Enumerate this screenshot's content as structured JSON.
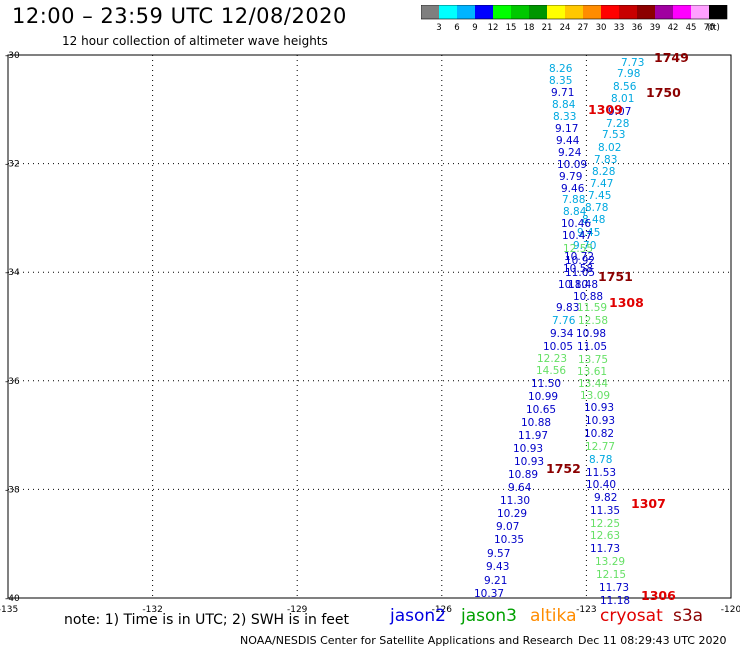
{
  "title": "12:00 – 23:59 UTC 12/08/2020",
  "subtitle": "12 hour collection of altimeter wave heights",
  "color_scale": {
    "unit": "(ft)",
    "ticks": [
      "3",
      "6",
      "9",
      "12",
      "15",
      "18",
      "21",
      "24",
      "27",
      "30",
      "33",
      "36",
      "39",
      "42",
      "45",
      "70"
    ],
    "colors": [
      "#7f7f7f",
      "#00ffff",
      "#00b4ff",
      "#0000ff",
      "#00ff00",
      "#00c800",
      "#009600",
      "#ffff00",
      "#ffc800",
      "#ff8c00",
      "#ff0000",
      "#c80000",
      "#8c0000",
      "#a000a0",
      "#ff00ff",
      "#ffa0ff",
      "#000000"
    ]
  },
  "axes": {
    "lon_ticks": [
      "-135",
      "-132",
      "-129",
      "-126",
      "-123",
      "-120"
    ],
    "lat_ticks": [
      "-30",
      "-32",
      "-34",
      "-36",
      "-38",
      "-40"
    ]
  },
  "points": [
    {
      "v": "7.73",
      "c": "#00a8e0"
    },
    {
      "v": "8.26",
      "c": "#00a8e0"
    },
    {
      "v": "7.98",
      "c": "#00a8e0"
    },
    {
      "v": "8.35",
      "c": "#00a8e0"
    },
    {
      "v": "8.56",
      "c": "#00a8e0"
    },
    {
      "v": "9.71",
      "c": "#0000c8"
    },
    {
      "v": "8.01",
      "c": "#00a8e0"
    },
    {
      "v": "8.84",
      "c": "#00a8e0"
    },
    {
      "v": "9.07",
      "c": "#0000c8"
    },
    {
      "v": "8.33",
      "c": "#00a8e0"
    },
    {
      "v": "7.28",
      "c": "#00a8e0"
    },
    {
      "v": "9.17",
      "c": "#0000c8"
    },
    {
      "v": "7.53",
      "c": "#00a8e0"
    },
    {
      "v": "9.44",
      "c": "#0000c8"
    },
    {
      "v": "8.02",
      "c": "#00a8e0"
    },
    {
      "v": "9.24",
      "c": "#0000c8"
    },
    {
      "v": "7.83",
      "c": "#00a8e0"
    },
    {
      "v": "10.09",
      "c": "#0000c8"
    },
    {
      "v": "8.28",
      "c": "#00a8e0"
    },
    {
      "v": "9.79",
      "c": "#0000c8"
    },
    {
      "v": "7.47",
      "c": "#00a8e0"
    },
    {
      "v": "9.46",
      "c": "#0000c8"
    },
    {
      "v": "7.45",
      "c": "#00a8e0"
    },
    {
      "v": "7.88",
      "c": "#00a8e0"
    },
    {
      "v": "8.78",
      "c": "#00a8e0"
    },
    {
      "v": "8.84",
      "c": "#00a8e0"
    },
    {
      "v": "8.48",
      "c": "#00a8e0"
    },
    {
      "v": "10.46",
      "c": "#0000c8"
    },
    {
      "v": "9.45",
      "c": "#00a8e0"
    },
    {
      "v": "10.47",
      "c": "#0000c8"
    },
    {
      "v": "9.70",
      "c": "#00a8e0"
    },
    {
      "v": "12.55",
      "c": "#66e066"
    },
    {
      "v": "10.72",
      "c": "#0000c8"
    },
    {
      "v": "10.92",
      "c": "#0000c8"
    },
    {
      "v": "10.58",
      "c": "#0000c8"
    },
    {
      "v": "11.05",
      "c": "#0000c8"
    },
    {
      "v": "11.48",
      "c": "#0000c8"
    },
    {
      "v": "10.80",
      "c": "#0000c8"
    },
    {
      "v": "10.88",
      "c": "#0000c8"
    },
    {
      "v": "9.83",
      "c": "#0000c8"
    },
    {
      "v": "11.59",
      "c": "#66e066"
    },
    {
      "v": "7.76",
      "c": "#00a8e0"
    },
    {
      "v": "12.58",
      "c": "#66e066"
    },
    {
      "v": "9.34",
      "c": "#0000c8"
    },
    {
      "v": "10.98",
      "c": "#0000c8"
    },
    {
      "v": "10.05",
      "c": "#0000c8"
    },
    {
      "v": "11.05",
      "c": "#0000c8"
    },
    {
      "v": "12.23",
      "c": "#66e066"
    },
    {
      "v": "13.75",
      "c": "#66e066"
    },
    {
      "v": "14.56",
      "c": "#66e066"
    },
    {
      "v": "13.61",
      "c": "#66e066"
    },
    {
      "v": "11.50",
      "c": "#0000c8"
    },
    {
      "v": "13.44",
      "c": "#66e066"
    },
    {
      "v": "10.99",
      "c": "#0000c8"
    },
    {
      "v": "13.09",
      "c": "#66e066"
    },
    {
      "v": "10.65",
      "c": "#0000c8"
    },
    {
      "v": "10.93",
      "c": "#0000c8"
    },
    {
      "v": "10.88",
      "c": "#0000c8"
    },
    {
      "v": "10.93",
      "c": "#0000c8"
    },
    {
      "v": "11.97",
      "c": "#0000c8"
    },
    {
      "v": "10.82",
      "c": "#0000c8"
    },
    {
      "v": "10.93",
      "c": "#0000c8"
    },
    {
      "v": "12.77",
      "c": "#66e066"
    },
    {
      "v": "10.93",
      "c": "#0000c8"
    },
    {
      "v": "8.78",
      "c": "#00a8e0"
    },
    {
      "v": "10.89",
      "c": "#0000c8"
    },
    {
      "v": "11.53",
      "c": "#0000c8"
    },
    {
      "v": "9.64",
      "c": "#0000c8"
    },
    {
      "v": "10.40",
      "c": "#0000c8"
    },
    {
      "v": "11.30",
      "c": "#0000c8"
    },
    {
      "v": "9.82",
      "c": "#0000c8"
    },
    {
      "v": "10.29",
      "c": "#0000c8"
    },
    {
      "v": "11.35",
      "c": "#0000c8"
    },
    {
      "v": "9.07",
      "c": "#0000c8"
    },
    {
      "v": "12.25",
      "c": "#66e066"
    },
    {
      "v": "10.35",
      "c": "#0000c8"
    },
    {
      "v": "12.63",
      "c": "#66e066"
    },
    {
      "v": "9.57",
      "c": "#0000c8"
    },
    {
      "v": "11.73",
      "c": "#0000c8"
    },
    {
      "v": "9.43",
      "c": "#0000c8"
    },
    {
      "v": "13.29",
      "c": "#66e066"
    },
    {
      "v": "9.21",
      "c": "#0000c8"
    },
    {
      "v": "12.15",
      "c": "#66e066"
    },
    {
      "v": "10.37",
      "c": "#0000c8"
    },
    {
      "v": "11.73",
      "c": "#0000c8"
    },
    {
      "v": "11.18",
      "c": "#0000c8"
    }
  ],
  "pass_labels": [
    {
      "v": "1749",
      "c": "#8b0000"
    },
    {
      "v": "1750",
      "c": "#8b0000"
    },
    {
      "v": "1309",
      "c": "#e00000"
    },
    {
      "v": "1751",
      "c": "#8b0000"
    },
    {
      "v": "1308",
      "c": "#e00000"
    },
    {
      "v": "1752",
      "c": "#8b0000"
    },
    {
      "v": "1307",
      "c": "#e00000"
    },
    {
      "v": "1306",
      "c": "#e00000"
    }
  ],
  "note": "note: 1) Time is in UTC; 2) SWH is in feet",
  "satellites": [
    {
      "name": "jason2",
      "color": "#0000e0"
    },
    {
      "name": "jason3",
      "color": "#00a000"
    },
    {
      "name": "altika",
      "color": "#ff8c00"
    },
    {
      "name": "cryosat",
      "color": "#e00000"
    },
    {
      "name": "s3a",
      "color": "#8b0000"
    }
  ],
  "footer_left": "NOAA/NESDIS Center for Satellite Applications and Research",
  "footer_right": "Dec 11 08:29:43 UTC 2020"
}
